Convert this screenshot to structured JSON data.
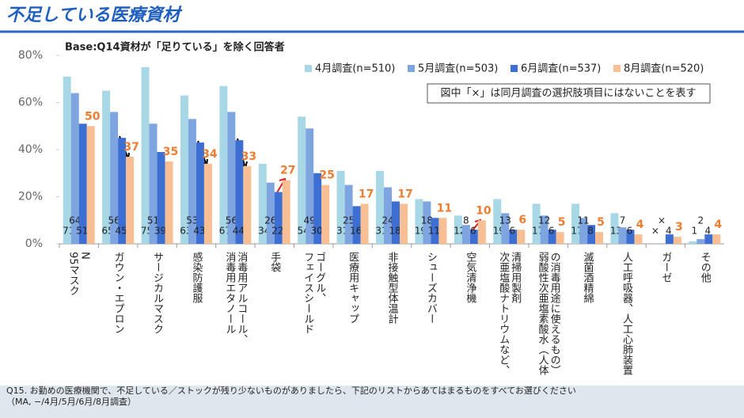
{
  "chart_data": {
    "type": "bar",
    "title": "不足している医療資材",
    "subtitle": "Base:Q14資材が「足りている」を除く回答者",
    "note": "図中「×」は同月調査の選択肢項目にはないことを表す",
    "footnote": [
      "Q15. お勤めの医療機関で、不足している／ストックが残り少ないものがありましたら、下記のリストからあてはまるものをすべてお選びください",
      "（MA, −/4月/5月/6月/8月調査）"
    ],
    "categories": [
      "N\n95マスク",
      "ガウン・エプロン",
      "サージカルマスク",
      "感染防護服",
      "消毒用アルコール、\n消毒用エタノール",
      "手袋",
      "ゴーグル、\nフェイスシールド",
      "医療用キャップ",
      "非接触型体温計",
      "シューズカバー",
      "空気清浄機",
      "清掃用製剤\n次亜塩酸ナトリウムなど、",
      "の消毒用途に使えるもの）\n弱酸性次亜塩素酸水（人体",
      "滅菌酒精綿",
      "人工呼吸器、人工心肺装置",
      "ガーゼ",
      "その他"
    ],
    "series": [
      {
        "name": "4月調査(n=510)",
        "color": "#a8d8e6",
        "values": [
          71,
          65,
          75,
          63,
          67,
          34,
          54,
          31,
          31,
          19,
          12,
          19,
          17,
          17,
          13,
          null,
          1
        ],
        "value_labels": [
          "71",
          "65",
          "75",
          "63",
          "67",
          "34",
          "54",
          "31",
          "31",
          "19",
          "12",
          "19",
          "17",
          "17",
          "13",
          "×",
          "1"
        ]
      },
      {
        "name": "5月調査(n=503)",
        "color": "#7fa5e0",
        "values": [
          64,
          56,
          51,
          53,
          56,
          26,
          49,
          25,
          24,
          18,
          8,
          13,
          12,
          11,
          7,
          null,
          2
        ],
        "value_labels": [
          "64",
          "56",
          "51",
          "53",
          "56",
          "26",
          "49",
          "25",
          "24",
          "18",
          "8",
          "13",
          "12",
          "11",
          "7",
          "×",
          "2"
        ]
      },
      {
        "name": "6月調査(n=537)",
        "color": "#3d6fd2",
        "values": [
          51,
          45,
          39,
          43,
          44,
          22,
          30,
          16,
          18,
          11,
          6,
          6,
          6,
          8,
          6,
          4,
          4
        ]
      },
      {
        "name": "8月調査(n=520)",
        "color": "#f8bf95",
        "values": [
          50,
          37,
          35,
          34,
          33,
          27,
          25,
          17,
          17,
          11,
          10,
          6,
          5,
          5,
          4,
          3,
          4
        ]
      }
    ],
    "ylim": [
      0,
      80
    ],
    "yticks": [
      {
        "value": 0,
        "label": "0%"
      },
      {
        "value": 20,
        "label": "20%"
      },
      {
        "value": 40,
        "label": "40%"
      },
      {
        "value": 60,
        "label": "60%"
      },
      {
        "value": 80,
        "label": "80%"
      }
    ],
    "legend": "top-right"
  }
}
